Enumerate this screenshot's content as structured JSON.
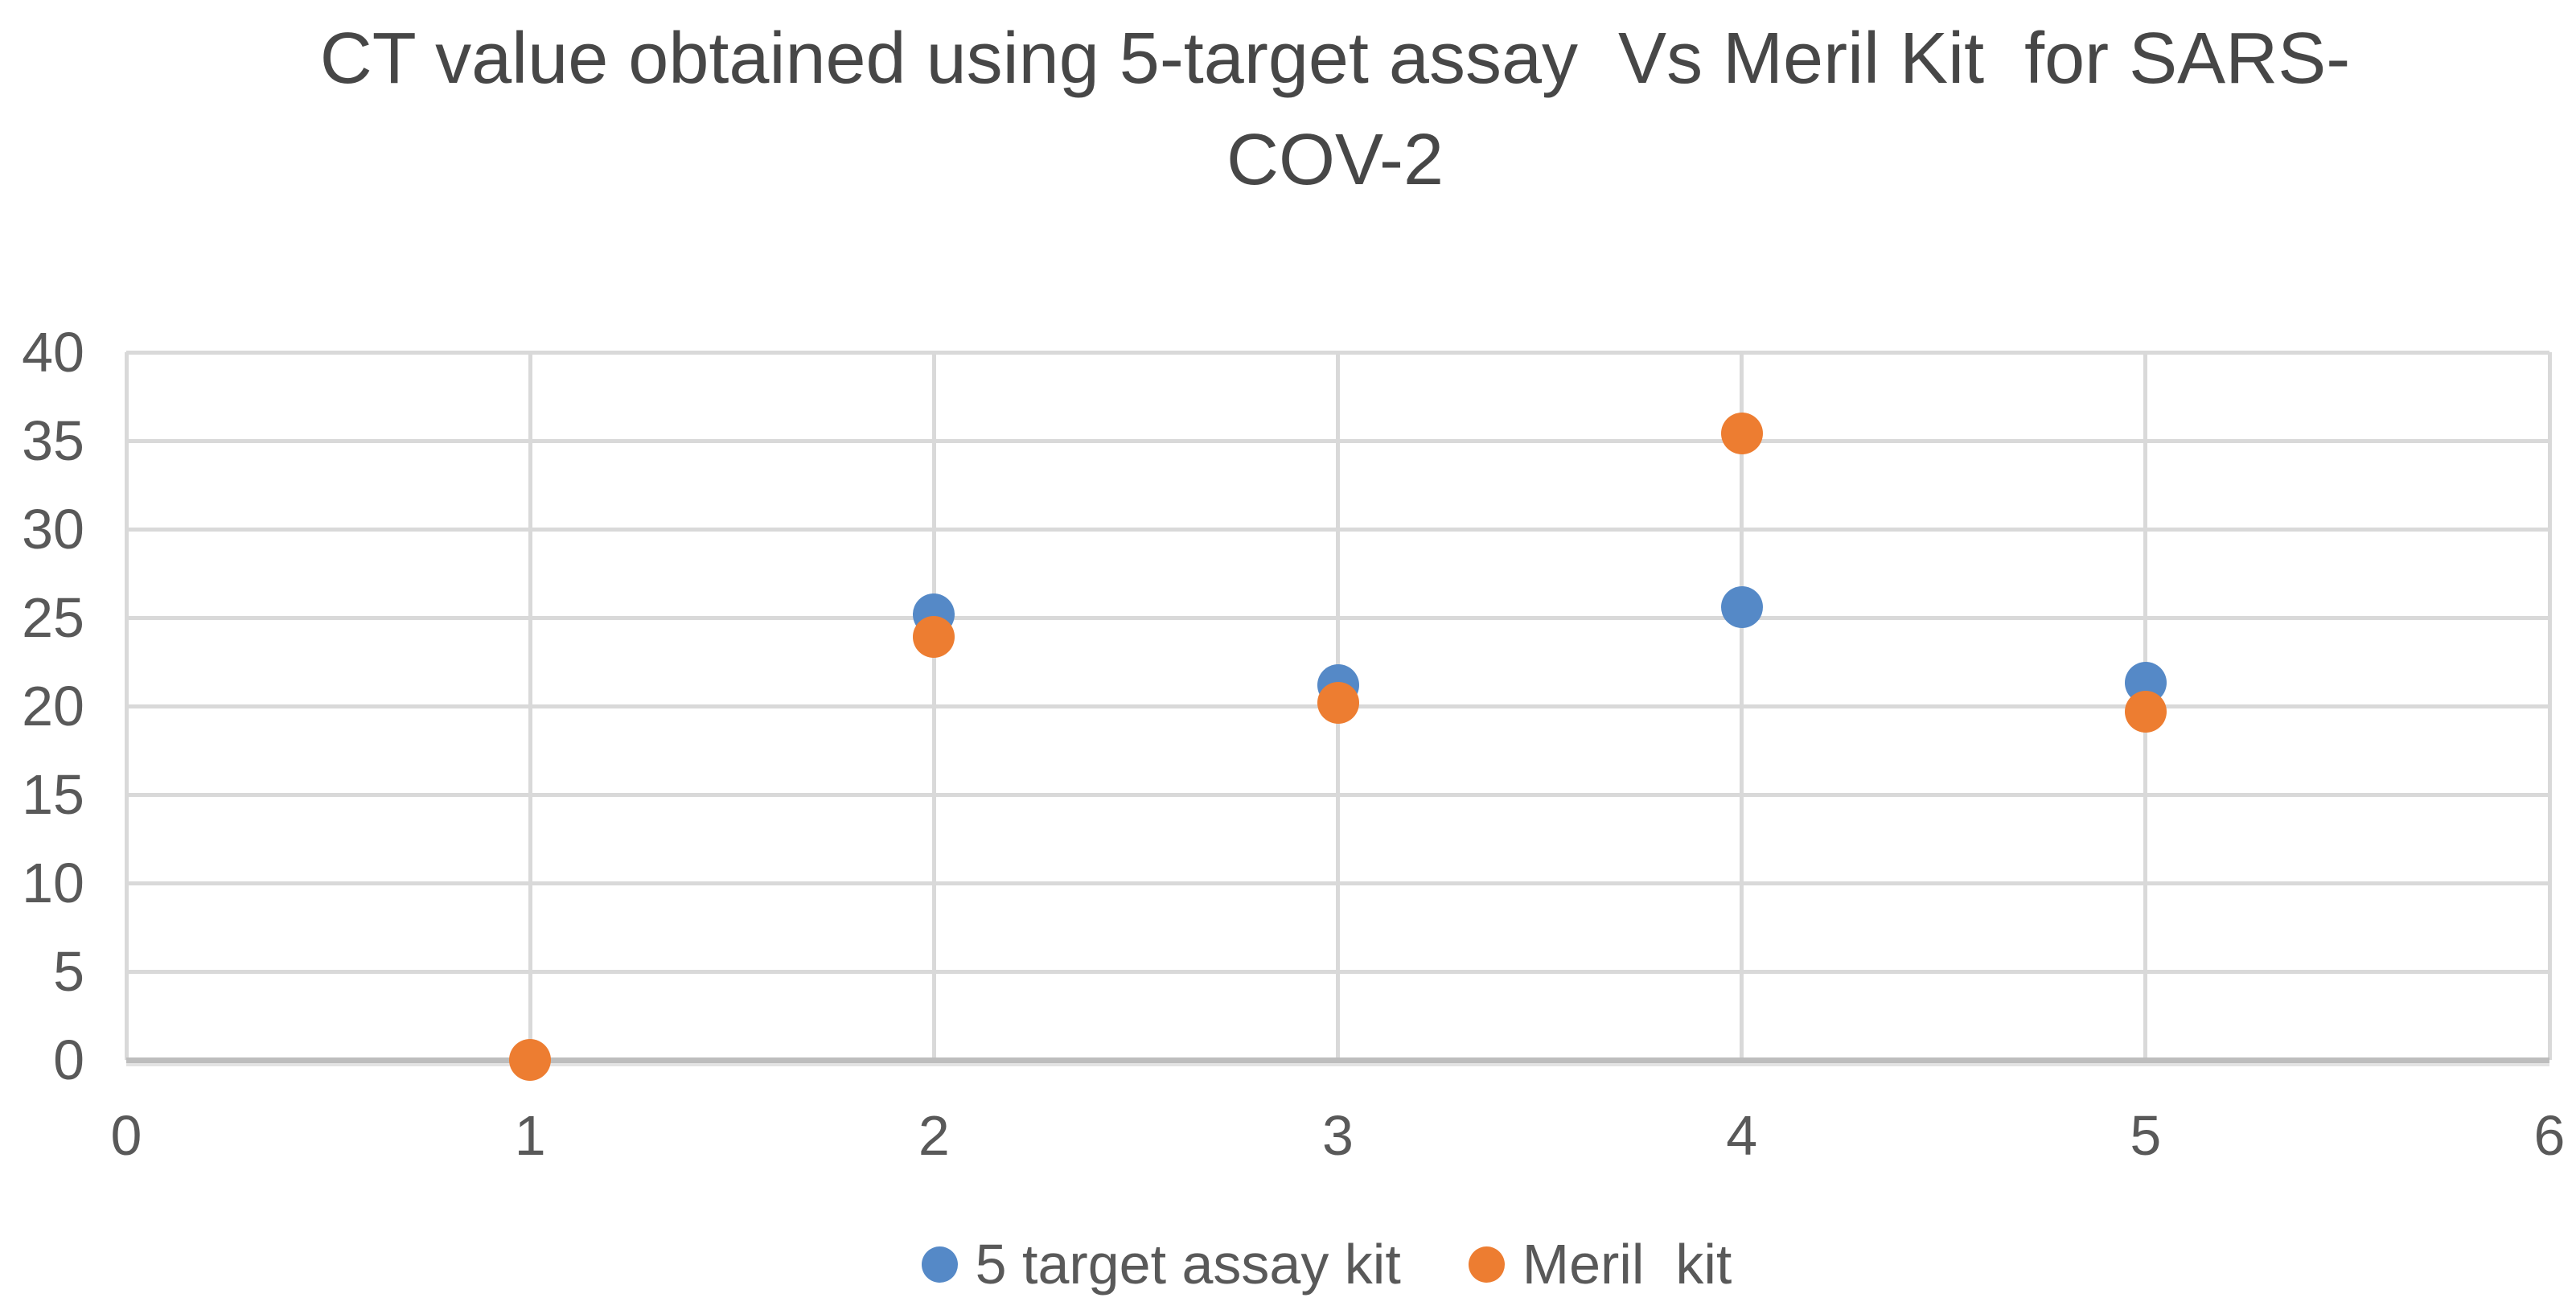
{
  "title": {
    "line1": "CT value obtained using 5-target assay  Vs Meril Kit  for SARS-",
    "line2": "COV-2"
  },
  "colors": {
    "series_blue": "#5589C7",
    "series_orange": "#ED7D31",
    "gridline": "#D9D9D9",
    "axis_line": "#BDBDBD",
    "tick_text": "#595959",
    "title_text": "#474747",
    "background": "#FFFFFF"
  },
  "chart_data": {
    "type": "scatter",
    "title": "CT value obtained using 5-target assay  Vs Meril Kit  for SARS-COV-2",
    "xlabel": "",
    "ylabel": "",
    "xlim": [
      0,
      6
    ],
    "ylim": [
      0,
      40
    ],
    "x_ticks": [
      0,
      1,
      2,
      3,
      4,
      5,
      6
    ],
    "y_ticks": [
      0,
      5,
      10,
      15,
      20,
      25,
      30,
      35,
      40
    ],
    "grid": true,
    "legend_position": "bottom",
    "marker": "circle",
    "series": [
      {
        "name": "5 target assay kit",
        "color": "#5589C7",
        "points": [
          {
            "x": 2,
            "y": 25.2
          },
          {
            "x": 3,
            "y": 21.2
          },
          {
            "x": 4,
            "y": 25.6
          },
          {
            "x": 5,
            "y": 21.3
          }
        ]
      },
      {
        "name": "Meril  kit",
        "color": "#ED7D31",
        "points": [
          {
            "x": 1,
            "y": 0
          },
          {
            "x": 2,
            "y": 23.9
          },
          {
            "x": 3,
            "y": 20.2
          },
          {
            "x": 4,
            "y": 35.4
          },
          {
            "x": 5,
            "y": 19.7
          }
        ]
      }
    ]
  }
}
